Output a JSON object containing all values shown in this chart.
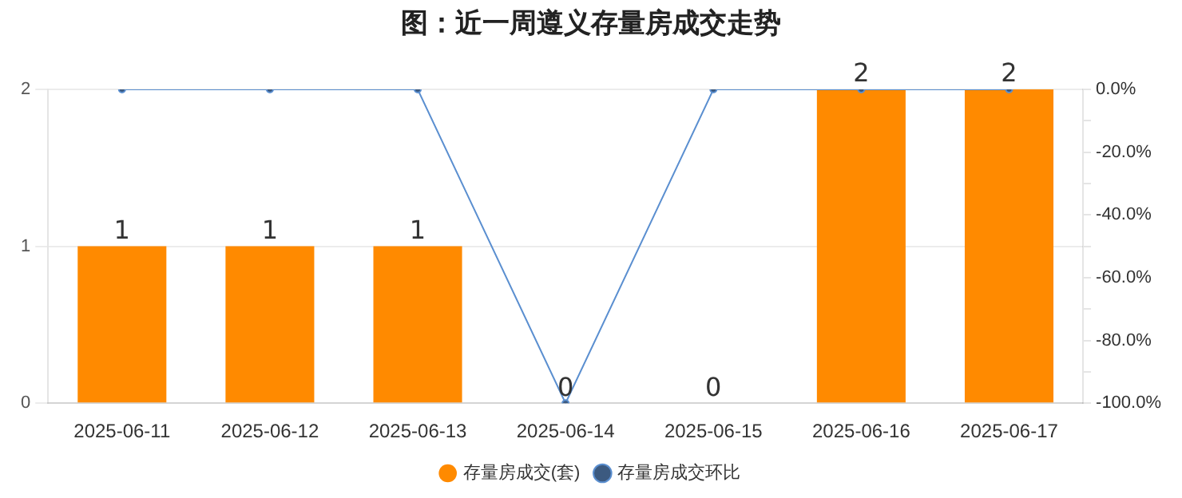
{
  "chart_data": {
    "type": "bar",
    "title": "图：近一周遵义存量房成交走势",
    "categories": [
      "2025-06-11",
      "2025-06-12",
      "2025-06-13",
      "2025-06-14",
      "2025-06-15",
      "2025-06-16",
      "2025-06-17"
    ],
    "series": [
      {
        "name": "存量房成交(套)",
        "color": "#ff8a00",
        "values": [
          1,
          1,
          1,
          0,
          0,
          2,
          2
        ],
        "value_labels": [
          "1",
          "1",
          "1",
          "0",
          "0",
          "2",
          "2"
        ]
      },
      {
        "name": "存量房成交环比",
        "type": "line",
        "axis": "y2",
        "color": "#5b8fd0",
        "values": [
          0,
          0,
          0,
          -100,
          0,
          0,
          0
        ]
      }
    ],
    "ylim": [
      0,
      2
    ],
    "yticks": [
      0,
      1,
      2
    ],
    "y2lim": [
      -100,
      0
    ],
    "y2ticks": [
      {
        "value": 0,
        "label": "0.0%"
      },
      {
        "value": -10,
        "label": null
      },
      {
        "value": -20,
        "label": "-20.0%"
      },
      {
        "value": -30,
        "label": null
      },
      {
        "value": -40,
        "label": "-40.0%"
      },
      {
        "value": -50,
        "label": null
      },
      {
        "value": -60,
        "label": "-60.0%"
      },
      {
        "value": -70,
        "label": null
      },
      {
        "value": -80,
        "label": "-80.0%"
      },
      {
        "value": -90,
        "label": null
      },
      {
        "value": -100,
        "label": "-100.0%"
      }
    ],
    "grid": "y",
    "legend": "bottom",
    "marker": "circle"
  }
}
